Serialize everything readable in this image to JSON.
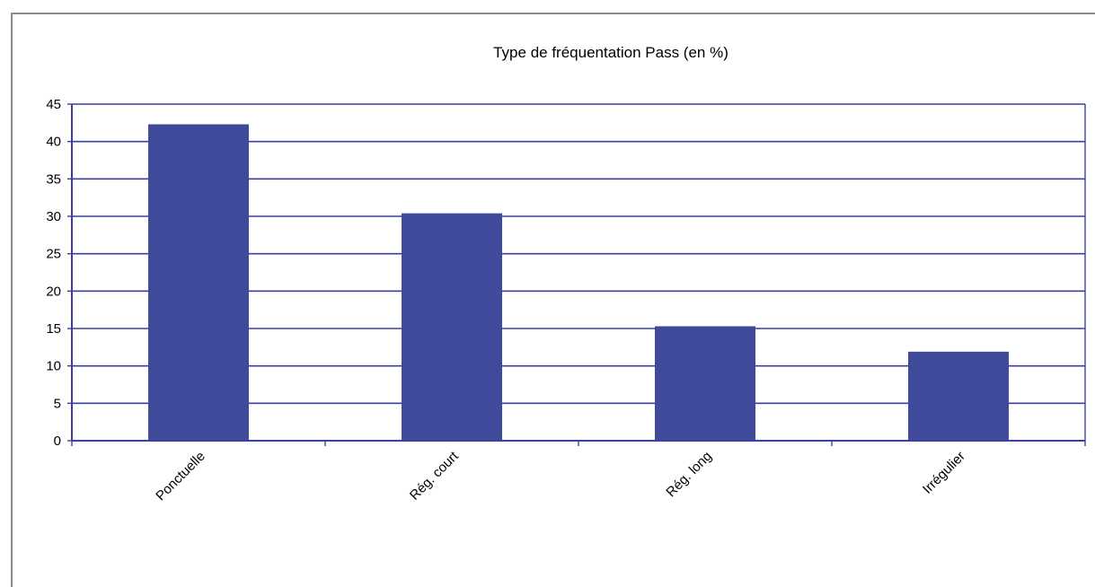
{
  "chart_data": {
    "type": "bar",
    "title": "Type de fréquentation Pass (en %)",
    "xlabel": "",
    "ylabel": "",
    "categories": [
      "Ponctuelle",
      "Rég. court",
      "Rég. long",
      "Irrégulier"
    ],
    "values": [
      42.3,
      30.4,
      15.3,
      11.9
    ],
    "ylim": [
      0,
      45
    ],
    "yticks": [
      0,
      5,
      10,
      15,
      20,
      25,
      30,
      35,
      40,
      45
    ],
    "grid": true,
    "legend": "none",
    "colors": {
      "bar": "#3f4a9a",
      "gridline": "#3b3fa0",
      "axis": "#3b3fa0",
      "frame": "#8c8c8c"
    }
  }
}
